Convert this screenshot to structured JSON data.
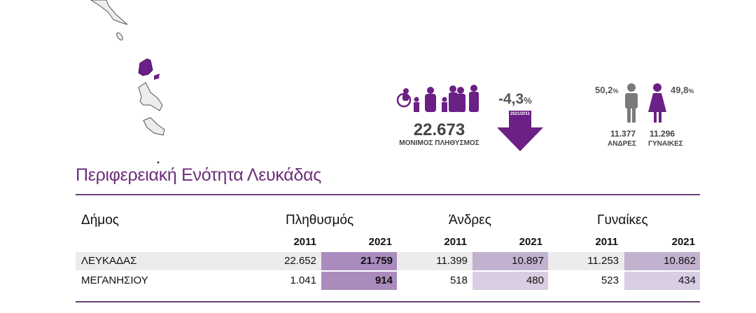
{
  "title": "Περιφερειακή Ενότητα Λευκάδας",
  "summary": {
    "population": "22.673",
    "population_label": "ΜΟΝΙΜΟΣ ΠΛΗΘΥΣΜΟΣ",
    "change": "-4,3",
    "change_unit": "%",
    "change_period": "2021/2011",
    "men_pct": "50,2",
    "women_pct": "49,8",
    "pct_unit": "%",
    "men": "11.377",
    "women": "11.296",
    "men_label": "ΑΝΔΡΕΣ",
    "women_label": "ΓΥΝΑΙΚΕΣ"
  },
  "table": {
    "headers": {
      "municipality": "Δήμος",
      "population": "Πληθυσμός",
      "men": "Άνδρες",
      "women": "Γυναίκες"
    },
    "year_a": "2011",
    "year_b": "2021",
    "rows": [
      {
        "name": "ΛΕΥΚΑΔΑΣ",
        "p2011": "22.652",
        "p2021": "21.759",
        "m2011": "11.399",
        "m2021": "10.897",
        "w2011": "11.253",
        "w2021": "10.862"
      },
      {
        "name": "ΜΕΓΑΝΗΣΙΟΥ",
        "p2011": "1.041",
        "p2021": "914",
        "m2011": "518",
        "m2021": "480",
        "w2011": "523",
        "w2021": "434"
      }
    ]
  },
  "colors": {
    "accent": "#6b2085",
    "gray": "#7a7a7a"
  }
}
